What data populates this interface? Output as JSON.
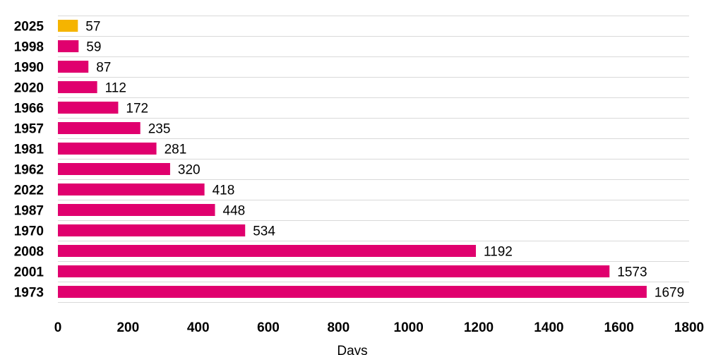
{
  "chart_data": {
    "type": "bar",
    "orientation": "horizontal",
    "categories": [
      "2025",
      "1998",
      "1990",
      "2020",
      "1966",
      "1957",
      "1981",
      "1962",
      "2022",
      "1987",
      "1970",
      "2008",
      "2001",
      "1973"
    ],
    "values": [
      57,
      59,
      87,
      112,
      172,
      235,
      281,
      320,
      418,
      448,
      534,
      1192,
      1573,
      1679
    ],
    "title": "",
    "xlabel": "Days",
    "ylabel": "",
    "xlim": [
      0,
      1800
    ],
    "x_ticks": [
      0,
      200,
      400,
      600,
      800,
      1000,
      1200,
      1400,
      1600,
      1800
    ],
    "grid": true,
    "legend": "none",
    "colors": {
      "default": "#e0006e",
      "highlight": "#f5b400",
      "highlight_category": "2025"
    }
  }
}
